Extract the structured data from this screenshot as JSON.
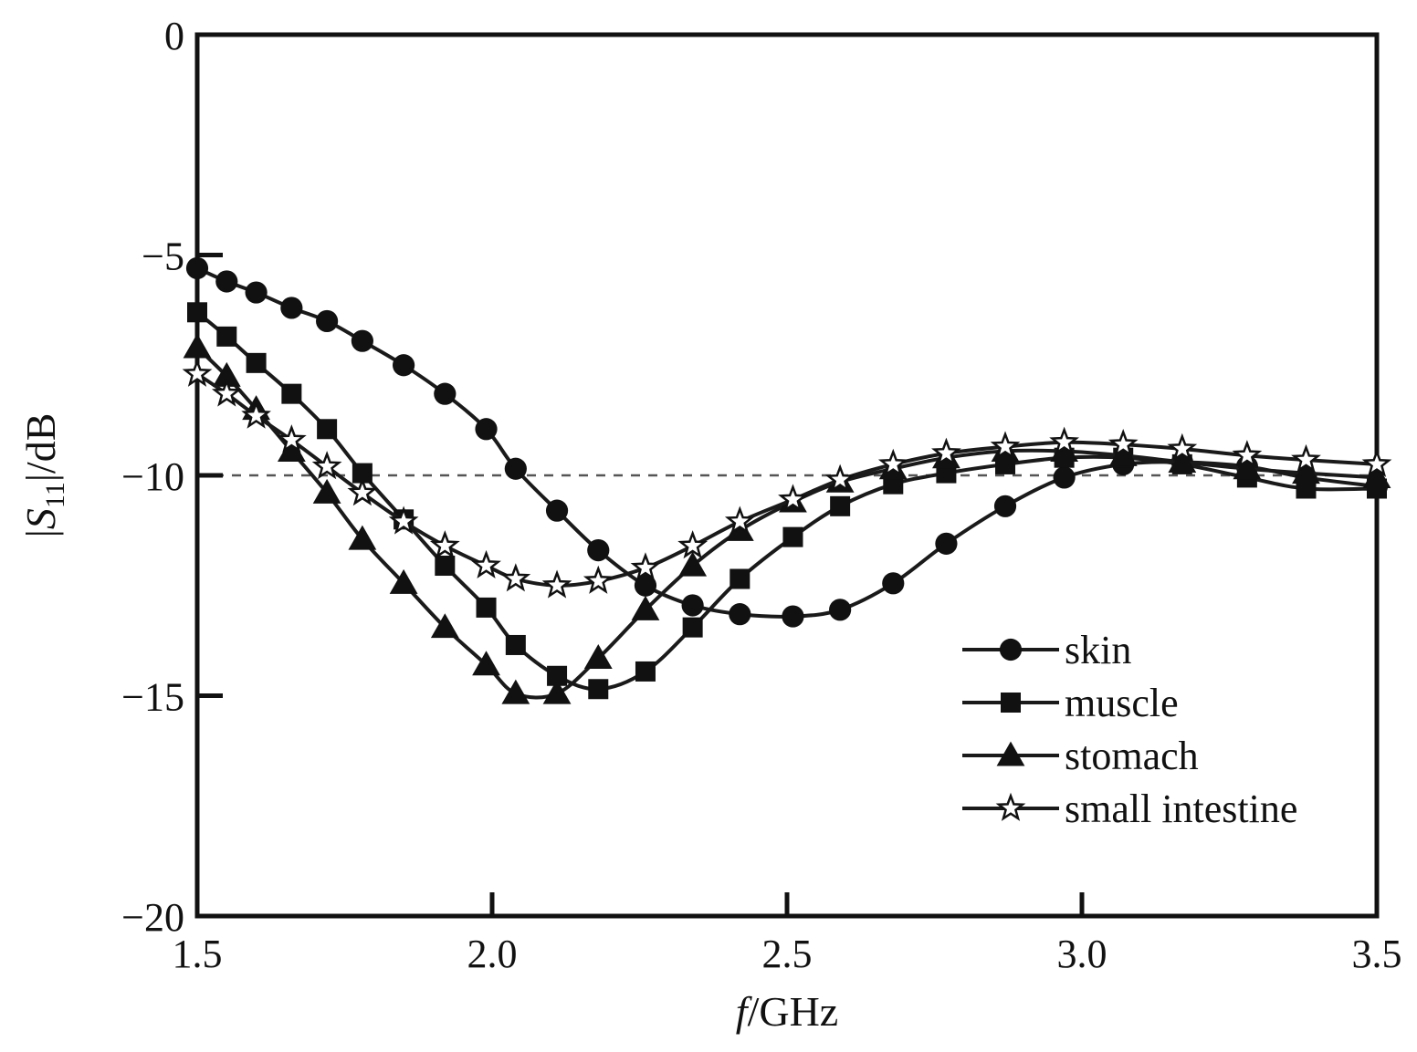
{
  "chart_data": {
    "type": "line",
    "xlabel_italic": "f",
    "xlabel_rest": "/GHz",
    "ylabel_prefix": "|",
    "ylabel_symbol": "S",
    "ylabel_sub": "11",
    "ylabel_suffix": "|/dB",
    "xlim": [
      1.5,
      3.5
    ],
    "ylim": [
      -20,
      0
    ],
    "x_ticks": [
      "1.5",
      "2.0",
      "2.5",
      "3.0",
      "3.5"
    ],
    "y_ticks": [
      "0",
      "−5",
      "−10",
      "−15",
      "−20"
    ],
    "reference_line": {
      "y": -10,
      "style": "dashed"
    },
    "grid": false,
    "legend_position": "bottom-right",
    "series": [
      {
        "name": "skin",
        "marker": "circle",
        "x": [
          1.5,
          1.55,
          1.6,
          1.66,
          1.72,
          1.78,
          1.85,
          1.92,
          1.99,
          2.04,
          2.11,
          2.18,
          2.26,
          2.34,
          2.42,
          2.51,
          2.59,
          2.68,
          2.77,
          2.87,
          2.97,
          3.07,
          3.17,
          3.28,
          3.38,
          3.5
        ],
        "y": [
          -5.3,
          -5.6,
          -5.85,
          -6.2,
          -6.5,
          -6.95,
          -7.5,
          -8.15,
          -8.95,
          -9.85,
          -10.8,
          -11.7,
          -12.5,
          -12.95,
          -13.15,
          -13.2,
          -13.05,
          -12.45,
          -11.55,
          -10.7,
          -10.05,
          -9.75,
          -9.7,
          -9.8,
          -10.05,
          -10.25
        ]
      },
      {
        "name": "muscle",
        "marker": "square",
        "x": [
          1.5,
          1.55,
          1.6,
          1.66,
          1.72,
          1.78,
          1.85,
          1.92,
          1.99,
          2.04,
          2.11,
          2.18,
          2.26,
          2.34,
          2.42,
          2.51,
          2.59,
          2.68,
          2.77,
          2.87,
          2.97,
          3.07,
          3.17,
          3.28,
          3.38,
          3.5
        ],
        "y": [
          -6.3,
          -6.85,
          -7.45,
          -8.15,
          -8.95,
          -9.95,
          -11.0,
          -12.05,
          -13.0,
          -13.85,
          -14.55,
          -14.85,
          -14.45,
          -13.45,
          -12.35,
          -11.4,
          -10.7,
          -10.2,
          -9.95,
          -9.75,
          -9.6,
          -9.6,
          -9.75,
          -10.05,
          -10.3,
          -10.3
        ]
      },
      {
        "name": "stomach",
        "marker": "triangle",
        "x": [
          1.5,
          1.55,
          1.6,
          1.66,
          1.72,
          1.78,
          1.85,
          1.92,
          1.99,
          2.04,
          2.11,
          2.18,
          2.26,
          2.34,
          2.42,
          2.51,
          2.59,
          2.68,
          2.77,
          2.87,
          2.97,
          3.07,
          3.17,
          3.28,
          3.38,
          3.5
        ],
        "y": [
          -7.1,
          -7.75,
          -8.5,
          -9.45,
          -10.4,
          -11.45,
          -12.45,
          -13.45,
          -14.3,
          -14.95,
          -14.95,
          -14.15,
          -13.05,
          -12.05,
          -11.25,
          -10.6,
          -10.15,
          -9.85,
          -9.6,
          -9.45,
          -9.45,
          -9.55,
          -9.7,
          -9.85,
          -9.95,
          -10.05
        ]
      },
      {
        "name": "small intestine",
        "marker": "star",
        "x": [
          1.5,
          1.55,
          1.6,
          1.66,
          1.72,
          1.78,
          1.85,
          1.92,
          1.99,
          2.04,
          2.11,
          2.18,
          2.26,
          2.34,
          2.42,
          2.51,
          2.59,
          2.68,
          2.77,
          2.87,
          2.97,
          3.07,
          3.17,
          3.28,
          3.38,
          3.5
        ],
        "y": [
          -7.7,
          -8.15,
          -8.65,
          -9.2,
          -9.8,
          -10.4,
          -11.05,
          -11.6,
          -12.05,
          -12.35,
          -12.5,
          -12.4,
          -12.1,
          -11.6,
          -11.05,
          -10.55,
          -10.1,
          -9.75,
          -9.5,
          -9.35,
          -9.25,
          -9.3,
          -9.4,
          -9.55,
          -9.65,
          -9.75
        ]
      }
    ]
  }
}
